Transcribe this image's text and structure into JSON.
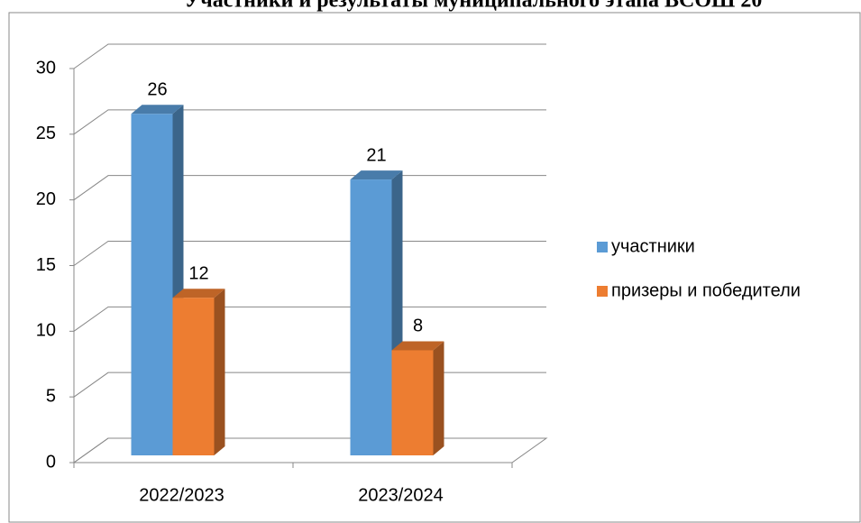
{
  "chart_data": {
    "type": "bar3d",
    "title": "Участники и результаты муниципального этапа ВСОШ 20",
    "categories": [
      "2022/2023",
      "2023/2024"
    ],
    "series": [
      {
        "name": "участники",
        "color": "#5b9bd5",
        "values": [
          26,
          21
        ]
      },
      {
        "name": "призеры и победители",
        "color": "#ed7d31",
        "values": [
          12,
          8
        ]
      }
    ],
    "ylim": [
      0,
      30
    ],
    "yticks": [
      0,
      5,
      10,
      15,
      20,
      25,
      30
    ],
    "grid": true,
    "legend": "right"
  }
}
